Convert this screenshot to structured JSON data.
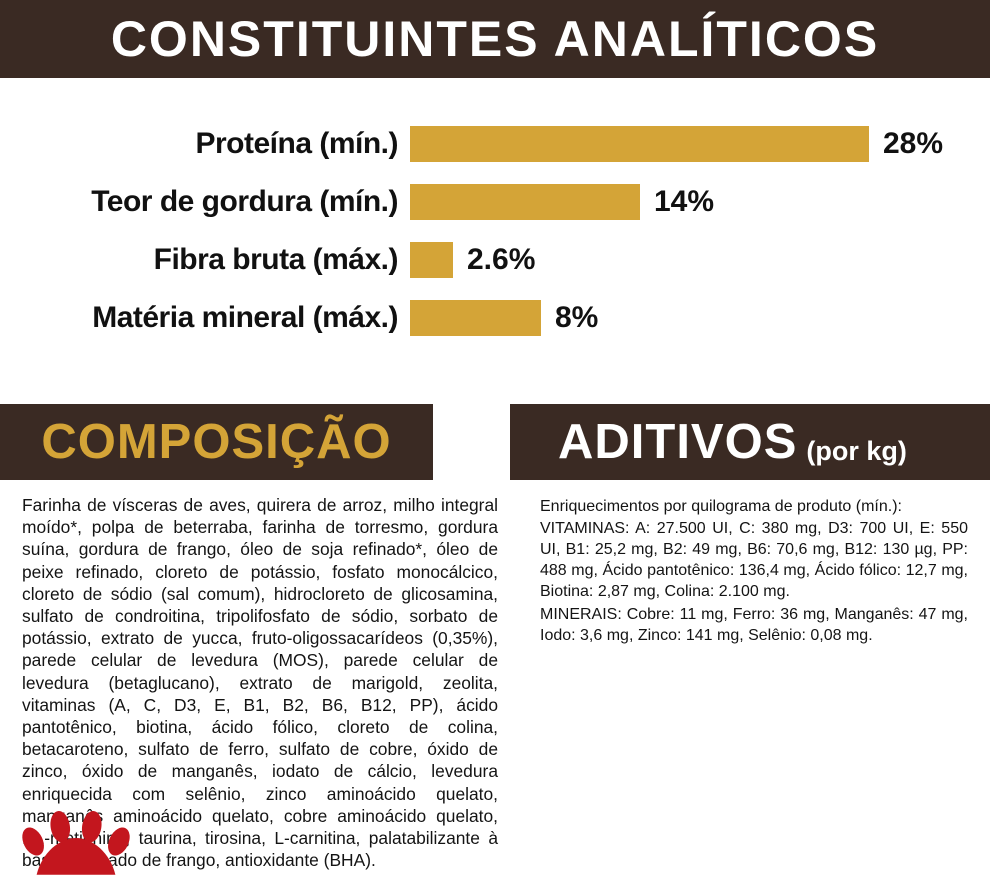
{
  "header": {
    "title": "CONSTITUINTES ANALÍTICOS"
  },
  "chart_data": {
    "type": "bar",
    "orientation": "horizontal",
    "title": "CONSTITUINTES ANALÍTICOS",
    "categories": [
      "Proteína (mín.)",
      "Teor de gordura (mín.)",
      "Fibra bruta (máx.)",
      "Matéria mineral (máx.)"
    ],
    "values": [
      28,
      14,
      2.6,
      8
    ],
    "value_labels": [
      "28%",
      "14%",
      "2.6%",
      "8%"
    ],
    "unit": "%",
    "xlim": [
      0,
      30
    ],
    "grid": false,
    "legend": "none",
    "bar_color": "#d4a437"
  },
  "sections": {
    "composicao": {
      "heading": "COMPOSIÇÃO",
      "body": "Farinha de vísceras de aves, quirera de arroz, milho integral moído*, polpa de beterraba, farinha de torresmo, gordura suína, gordura de frango, óleo de soja refinado*, óleo de peixe refinado, cloreto de potássio, fosfato monocálcico, cloreto de sódio (sal comum), hidrocloreto de glicosamina, sulfato de condroitina, tripolifosfato de sódio, sorbato de potássio, extrato de yucca, fruto-oligossacarídeos (0,35%), parede celular de levedura (MOS), parede celular de levedura (betaglucano), extrato de marigold, zeolita, vitaminas (A, C, D3, E, B1, B2, B6, B12, PP), ácido pantotênico, biotina, ácido fólico, cloreto de colina, betacaroteno, sulfato de ferro, sulfato de cobre, óxido de zinco, óxido de manganês, iodato de cálcio, levedura enriquecida com selênio, zinco aminoácido quelato, manganês aminoácido quelato, cobre aminoácido quelato, DL-metionina, taurina, tirosina, L-carnitina, palatabilizante à base de fígado de frango, antioxidante (BHA)."
    },
    "aditivos": {
      "heading": "ADITIVOS",
      "heading_suffix": "(por kg)",
      "intro": "Enriquecimentos por quilograma de produto (mín.):",
      "vitaminas": "VITAMINAS: A: 27.500 UI, C: 380 mg, D3: 700 UI, E: 550 UI, B1: 25,2 mg, B2: 49 mg, B6: 70,6 mg, B12: 130 µg, PP: 488 mg, Ácido pantotênico: 136,4 mg, Ácido fólico: 12,7 mg, Biotina: 2,87 mg, Colina: 2.100 mg.",
      "minerais": "MINERAIS: Cobre: 11 mg, Ferro: 36 mg, Manganês: 47 mg, Iodo: 3,6 mg, Zinco: 141 mg, Selênio: 0,08 mg."
    }
  },
  "colors": {
    "banner_bg": "#3a2a23",
    "bar_gold": "#d4a437",
    "logo_red": "#c3161e",
    "text": "#141414"
  }
}
